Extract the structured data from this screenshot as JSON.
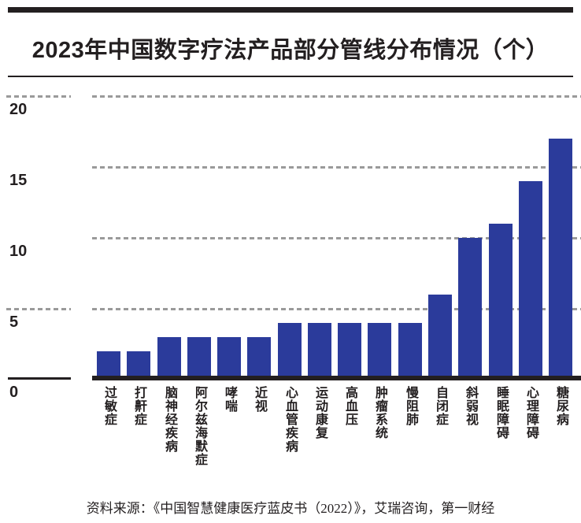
{
  "page": {
    "title": "2023年中国数字疗法产品部分管线分布情况（个）",
    "source": "资料来源：《中国智慧健康医疗蓝皮书（2022）》，艾瑞咨询，第一财经"
  },
  "colors": {
    "bar": "#2b3b9b",
    "gridline": "#9a9a9a",
    "axis": "#231f20",
    "text": "#231f20"
  },
  "chart_data": {
    "type": "bar",
    "title": "2023年中国数字疗法产品部分管线分布情况（个）",
    "categories": [
      "过敏症",
      "打鼾症",
      "脑神经疾病",
      "阿尔兹海默症",
      "哮喘",
      "近视",
      "心血管疾病",
      "运动康复",
      "高血压",
      "肿瘤系统",
      "慢阻肺",
      "自闭症",
      "斜弱视",
      "睡眠障碍",
      "心理障碍",
      "糖尿病"
    ],
    "values": [
      2,
      2,
      3,
      3,
      3,
      3,
      4,
      4,
      4,
      4,
      4,
      6,
      10,
      11,
      14,
      17
    ],
    "xlabel": "",
    "ylabel": "",
    "ylim": [
      0,
      20
    ],
    "yticks": [
      20,
      15,
      10,
      5,
      0
    ],
    "grid": "horizontal-dashed",
    "legend": "none",
    "orientation": "vertical",
    "bar_color": "#2b3b9b"
  }
}
